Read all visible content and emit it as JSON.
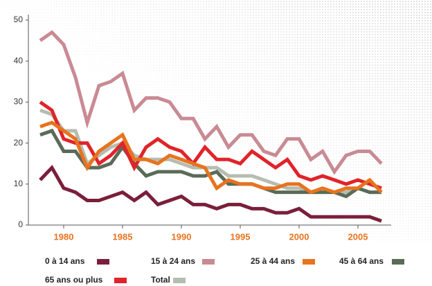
{
  "chart_data": {
    "type": "line",
    "x": [
      1978,
      1979,
      1980,
      1981,
      1982,
      1983,
      1984,
      1985,
      1986,
      1987,
      1988,
      1989,
      1990,
      1991,
      1992,
      1993,
      1994,
      1995,
      1996,
      1997,
      1998,
      1999,
      2000,
      2001,
      2002,
      2003,
      2004,
      2005,
      2006,
      2007
    ],
    "series": [
      {
        "name": "0 à 14 ans",
        "color": "#7a1f3a",
        "values": [
          11,
          14,
          9,
          8,
          6,
          6,
          7,
          8,
          6,
          8,
          5,
          6,
          7,
          5,
          5,
          4,
          5,
          5,
          4,
          4,
          3,
          3,
          4,
          2,
          2,
          2,
          2,
          2,
          2,
          1
        ]
      },
      {
        "name": "15 à 24 ans",
        "color": "#c98a94",
        "values": [
          45,
          47,
          44,
          36,
          25,
          34,
          35,
          37,
          28,
          31,
          31,
          30,
          26,
          26,
          21,
          24,
          19,
          22,
          22,
          18,
          17,
          21,
          21,
          16,
          18,
          13,
          17,
          18,
          18,
          15
        ]
      },
      {
        "name": "25 à 44 ans",
        "color": "#e8731e",
        "values": [
          24,
          25,
          23,
          21,
          14,
          18,
          20,
          22,
          16,
          16,
          15,
          17,
          16,
          15,
          14,
          9,
          11,
          10,
          10,
          9,
          9,
          10,
          10,
          8,
          9,
          8,
          9,
          9,
          11,
          8
        ]
      },
      {
        "name": "45 à 64 ans",
        "color": "#5a6b58",
        "values": [
          22,
          23,
          18,
          18,
          14,
          14,
          15,
          19,
          15,
          12,
          13,
          13,
          13,
          12,
          12,
          13,
          10,
          10,
          10,
          9,
          8,
          8,
          8,
          8,
          8,
          8,
          7,
          9,
          8,
          8
        ]
      },
      {
        "name": "65 ans ou plus",
        "color": "#e0242a",
        "values": [
          30,
          28,
          21,
          20,
          20,
          15,
          17,
          20,
          14,
          19,
          21,
          19,
          18,
          15,
          19,
          16,
          16,
          15,
          18,
          16,
          14,
          16,
          12,
          11,
          12,
          11,
          10,
          11,
          10,
          9
        ]
      },
      {
        "name": "Total",
        "color": "#b5bdb0",
        "values": [
          28,
          27,
          23,
          23,
          15,
          17,
          19,
          20,
          17,
          16,
          16,
          16,
          15,
          14,
          14,
          14,
          12,
          12,
          12,
          11,
          10,
          9,
          9,
          8,
          8,
          8,
          8,
          9,
          8,
          8
        ]
      }
    ],
    "xlim": [
      1977,
      2009
    ],
    "xticks": [
      1980,
      1985,
      1990,
      1995,
      2000,
      2005
    ],
    "ylim": [
      0,
      50
    ],
    "yticks": [
      0,
      10,
      20,
      30,
      40,
      50
    ]
  }
}
